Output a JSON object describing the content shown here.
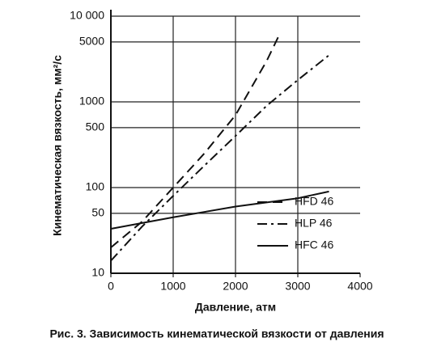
{
  "chart_data": {
    "type": "line",
    "caption": "Рис. 3. Зависимость кинематической вязкости от давления",
    "x_label": "Давление, атм",
    "y_label": "Кинематическая вязкость, мм²/с",
    "xlim": [
      0,
      4000
    ],
    "xticks": [
      0,
      1000,
      2000,
      3000,
      4000
    ],
    "ylim": [
      10,
      10000
    ],
    "yticks": [
      10,
      50,
      100,
      500,
      1000,
      5000,
      {
        "value": 10000,
        "label": "10 000"
      }
    ],
    "log_y": true,
    "grid": true,
    "legend": "lower right",
    "series": [
      {
        "name": "HFD 46",
        "color": "#111111",
        "linestyle": "--",
        "x": [
          0,
          500,
          1000,
          1500,
          2000,
          2500,
          2700
        ],
        "values": [
          20,
          40,
          100,
          250,
          700,
          3000,
          6000
        ]
      },
      {
        "name": "HLP 46",
        "color": "#111111",
        "linestyle": "-.",
        "x": [
          0,
          500,
          1000,
          1500,
          2000,
          2500,
          3000,
          3500
        ],
        "values": [
          14,
          35,
          80,
          180,
          400,
          900,
          1800,
          3500
        ]
      },
      {
        "name": "HFC 46",
        "color": "#111111",
        "linestyle": "-",
        "x": [
          0,
          1000,
          2000,
          3000,
          3500
        ],
        "values": [
          33,
          45,
          60,
          75,
          90
        ]
      }
    ]
  }
}
